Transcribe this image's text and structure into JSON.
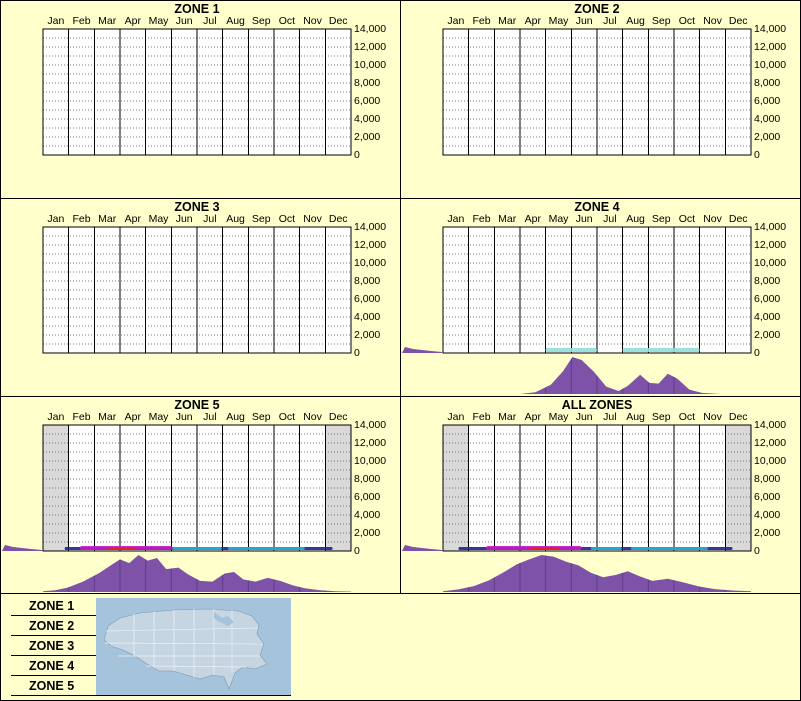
{
  "colors": {
    "page_background": "#FFFFCC",
    "plot_background": "#FFFFFF",
    "grid_line": "#000000",
    "dotted_line": "#777777",
    "shaded_column": "#D9D9D9",
    "density_fill": "#7D52A8",
    "density_divider": "#4A2A6E",
    "map_water": "#A6C3DC",
    "map_land": "#C6D5E2"
  },
  "legend": {
    "items": [
      "ZONE 1",
      "ZONE 2",
      "ZONE 3",
      "ZONE 4",
      "ZONE 5"
    ]
  },
  "chart_data": {
    "type": "area",
    "layout": "small-multiples-3x2",
    "x_categories": [
      "Jan",
      "Feb",
      "Mar",
      "Apr",
      "May",
      "Jun",
      "Jul",
      "Aug",
      "Sep",
      "Oct",
      "Nov",
      "Dec"
    ],
    "y_axis": {
      "min": 0,
      "max": 14000,
      "tick_step": 2000,
      "tick_labels": [
        "14,000",
        "12,000",
        "10,000",
        "8,000",
        "6,000",
        "4,000",
        "2,000",
        "0"
      ]
    },
    "panels": [
      {
        "title": "ZONE 1",
        "in_plot_series": [],
        "shaded_columns": [],
        "bottom_marks": [],
        "density_profile": [],
        "left_tail": false
      },
      {
        "title": "ZONE 2",
        "in_plot_series": [],
        "shaded_columns": [],
        "bottom_marks": [],
        "density_profile": [],
        "left_tail": false
      },
      {
        "title": "ZONE 3",
        "in_plot_series": [],
        "shaded_columns": [],
        "bottom_marks": [],
        "density_profile": [],
        "left_tail": false
      },
      {
        "title": "ZONE 4",
        "in_plot_series": [],
        "shaded_columns": [],
        "bottom_marks": [
          {
            "x0": 0.333,
            "x1": 0.5,
            "h": 4,
            "color": "#90DFDA"
          },
          {
            "x0": 0.583,
            "x1": 0.833,
            "h": 4,
            "color": "#90DFDA"
          }
        ],
        "density_profile": [
          [
            0,
            0
          ],
          [
            0.25,
            0
          ],
          [
            0.3,
            0.05
          ],
          [
            0.35,
            0.25
          ],
          [
            0.39,
            0.62
          ],
          [
            0.42,
            1.0
          ],
          [
            0.45,
            0.92
          ],
          [
            0.49,
            0.6
          ],
          [
            0.53,
            0.2
          ],
          [
            0.57,
            0.08
          ],
          [
            0.6,
            0.22
          ],
          [
            0.64,
            0.52
          ],
          [
            0.67,
            0.3
          ],
          [
            0.7,
            0.28
          ],
          [
            0.73,
            0.55
          ],
          [
            0.76,
            0.42
          ],
          [
            0.8,
            0.12
          ],
          [
            0.84,
            0.03
          ],
          [
            0.9,
            0
          ],
          [
            1,
            0
          ]
        ],
        "left_tail": true
      },
      {
        "title": "ZONE 5",
        "in_plot_series": [],
        "shaded_columns": [
          0,
          11
        ],
        "bottom_marks": [
          {
            "x0": 0.07,
            "x1": 0.94,
            "h": 3,
            "color": "#202090"
          },
          {
            "x0": 0.42,
            "x1": 0.58,
            "h": 3,
            "color": "#18B8D8"
          },
          {
            "x0": 0.6,
            "x1": 0.85,
            "h": 3,
            "color": "#18B8D8"
          },
          {
            "x0": 0.12,
            "x1": 0.42,
            "h": 4,
            "color": "#C818C8"
          },
          {
            "x0": 0.21,
            "x1": 0.3,
            "h": 3,
            "color": "#E82020"
          }
        ],
        "density_profile": [
          [
            0,
            0.02
          ],
          [
            0.04,
            0.05
          ],
          [
            0.08,
            0.12
          ],
          [
            0.13,
            0.28
          ],
          [
            0.18,
            0.5
          ],
          [
            0.22,
            0.72
          ],
          [
            0.25,
            0.88
          ],
          [
            0.28,
            0.78
          ],
          [
            0.31,
            1.0
          ],
          [
            0.34,
            0.85
          ],
          [
            0.37,
            0.92
          ],
          [
            0.4,
            0.62
          ],
          [
            0.44,
            0.66
          ],
          [
            0.47,
            0.48
          ],
          [
            0.51,
            0.3
          ],
          [
            0.55,
            0.28
          ],
          [
            0.59,
            0.5
          ],
          [
            0.62,
            0.54
          ],
          [
            0.65,
            0.34
          ],
          [
            0.69,
            0.28
          ],
          [
            0.73,
            0.38
          ],
          [
            0.77,
            0.3
          ],
          [
            0.81,
            0.18
          ],
          [
            0.85,
            0.1
          ],
          [
            0.9,
            0.05
          ],
          [
            0.95,
            0.02
          ],
          [
            1,
            0.01
          ]
        ],
        "left_tail": true
      },
      {
        "title": "ALL ZONES",
        "in_plot_series": [],
        "shaded_columns": [
          0,
          11
        ],
        "bottom_marks": [
          {
            "x0": 0.05,
            "x1": 0.94,
            "h": 3,
            "color": "#202090"
          },
          {
            "x0": 0.48,
            "x1": 0.58,
            "h": 3,
            "color": "#18B8D8"
          },
          {
            "x0": 0.61,
            "x1": 0.86,
            "h": 3,
            "color": "#18B8D8"
          },
          {
            "x0": 0.14,
            "x1": 0.45,
            "h": 4,
            "color": "#C818C8"
          },
          {
            "x0": 0.28,
            "x1": 0.38,
            "h": 3,
            "color": "#E82020"
          }
        ],
        "density_profile": [
          [
            0,
            0.02
          ],
          [
            0.05,
            0.07
          ],
          [
            0.1,
            0.16
          ],
          [
            0.15,
            0.32
          ],
          [
            0.2,
            0.55
          ],
          [
            0.24,
            0.75
          ],
          [
            0.28,
            0.88
          ],
          [
            0.32,
            1.0
          ],
          [
            0.36,
            0.95
          ],
          [
            0.4,
            0.82
          ],
          [
            0.44,
            0.72
          ],
          [
            0.48,
            0.52
          ],
          [
            0.52,
            0.4
          ],
          [
            0.56,
            0.46
          ],
          [
            0.6,
            0.56
          ],
          [
            0.64,
            0.42
          ],
          [
            0.68,
            0.3
          ],
          [
            0.73,
            0.36
          ],
          [
            0.78,
            0.26
          ],
          [
            0.83,
            0.15
          ],
          [
            0.88,
            0.08
          ],
          [
            0.94,
            0.04
          ],
          [
            1,
            0.02
          ]
        ],
        "left_tail": true
      }
    ]
  }
}
